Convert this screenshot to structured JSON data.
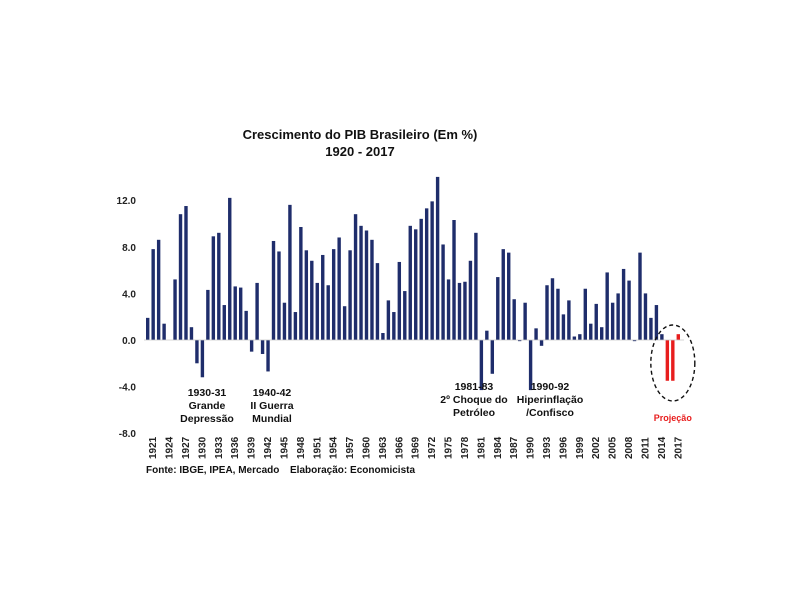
{
  "chart_data": {
    "type": "bar",
    "title": "Crescimento do PIB Brasileiro (Em %)",
    "subtitle": "1920 - 2017",
    "ylim": [
      -8,
      14
    ],
    "y_ticks": [
      "12.0",
      "8.0",
      "4.0",
      "0.0",
      "-4.0",
      "-8.0"
    ],
    "y_tick_values": [
      12,
      8,
      4,
      0,
      -4,
      -8
    ],
    "x_tick_labels": [
      "1921",
      "1924",
      "1927",
      "1930",
      "1933",
      "1936",
      "1939",
      "1942",
      "1945",
      "1948",
      "1951",
      "1954",
      "1957",
      "1960",
      "1963",
      "1966",
      "1969",
      "1972",
      "1975",
      "1978",
      "1981",
      "1984",
      "1987",
      "1990",
      "1993",
      "1996",
      "1999",
      "2002",
      "2005",
      "2008",
      "2011",
      "2014",
      "2017"
    ],
    "categories": [
      "1920",
      "1921",
      "1922",
      "1923",
      "1924",
      "1925",
      "1926",
      "1927",
      "1928",
      "1929",
      "1930",
      "1931",
      "1932",
      "1933",
      "1934",
      "1935",
      "1936",
      "1937",
      "1938",
      "1939",
      "1940",
      "1941",
      "1942",
      "1943",
      "1944",
      "1945",
      "1946",
      "1947",
      "1948",
      "1949",
      "1950",
      "1951",
      "1952",
      "1953",
      "1954",
      "1955",
      "1956",
      "1957",
      "1958",
      "1959",
      "1960",
      "1961",
      "1962",
      "1963",
      "1964",
      "1965",
      "1966",
      "1967",
      "1968",
      "1969",
      "1970",
      "1971",
      "1972",
      "1973",
      "1974",
      "1975",
      "1976",
      "1977",
      "1978",
      "1979",
      "1980",
      "1981",
      "1982",
      "1983",
      "1984",
      "1985",
      "1986",
      "1987",
      "1988",
      "1989",
      "1990",
      "1991",
      "1992",
      "1993",
      "1994",
      "1995",
      "1996",
      "1997",
      "1998",
      "1999",
      "2000",
      "2001",
      "2002",
      "2003",
      "2004",
      "2005",
      "2006",
      "2007",
      "2008",
      "2009",
      "2010",
      "2011",
      "2012",
      "2013",
      "2014",
      "2015",
      "2016",
      "2017"
    ],
    "series": [
      {
        "name": "Crescimento do PIB",
        "color": "#1f2d6b",
        "values": [
          1.9,
          7.8,
          8.6,
          1.4,
          null,
          5.2,
          10.8,
          11.5,
          1.1,
          -2.0,
          -3.2,
          4.3,
          8.9,
          9.2,
          3.0,
          12.2,
          4.6,
          4.5,
          2.5,
          -1.0,
          4.9,
          -1.2,
          -2.7,
          8.5,
          7.6,
          3.2,
          11.6,
          2.4,
          9.7,
          7.7,
          6.8,
          4.9,
          7.3,
          4.7,
          7.8,
          8.8,
          2.9,
          7.7,
          10.8,
          9.8,
          9.4,
          8.6,
          6.6,
          0.6,
          3.4,
          2.4,
          6.7,
          4.2,
          9.8,
          9.5,
          10.4,
          11.3,
          11.9,
          14.0,
          8.2,
          5.2,
          10.3,
          4.9,
          5.0,
          6.8,
          9.2,
          -4.3,
          0.8,
          -2.9,
          5.4,
          7.8,
          7.5,
          3.5,
          -0.1,
          3.2,
          -4.3,
          1.0,
          -0.5,
          4.7,
          5.3,
          4.4,
          2.2,
          3.4,
          0.3,
          0.5,
          4.4,
          1.4,
          3.1,
          1.1,
          5.8,
          3.2,
          4.0,
          6.1,
          5.1,
          -0.1,
          7.5,
          4.0,
          1.9,
          3.0,
          0.5,
          -3.5,
          -3.5,
          0.5
        ]
      }
    ],
    "projection": {
      "label": "Projeção",
      "color": "#e81d1d",
      "categories": [
        "2015",
        "2016",
        "2017"
      ]
    },
    "annotations": [
      {
        "lines": [
          "1930-31",
          "Grande",
          "Depressão"
        ]
      },
      {
        "lines": [
          "1940-42",
          "II Guerra",
          "Mundial"
        ]
      },
      {
        "lines": [
          "1981-83",
          "2º Choque do",
          "Petróleo"
        ]
      },
      {
        "lines": [
          "1990-92",
          "Hiperinflação",
          "/Confisco"
        ]
      }
    ]
  },
  "footer": {
    "source": "Fonte: IBGE, IPEA, Mercado",
    "author": "Elaboração: Economicista"
  }
}
